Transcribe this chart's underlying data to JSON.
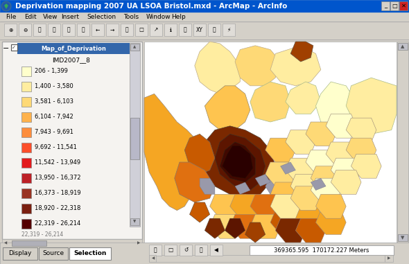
{
  "title_bar": "Deprivation mapping 2007 UA LSOA Bristol.mxd - ArcMap - ArcInfo",
  "title_bar_bg": "#0055cc",
  "title_bar_text_color": "#ffffff",
  "window_bg": "#d4d0c8",
  "menu_items": [
    "File",
    "Edit",
    "View",
    "Insert",
    "Selection",
    "Tools",
    "Window",
    "Help"
  ],
  "legend_title": "Map_of_Deprivation",
  "legend_field": "IMD2007__8",
  "legend_items": [
    {
      "label": "206 - 1,399",
      "color": "#ffffcc"
    },
    {
      "label": "1,400 - 3,580",
      "color": "#ffeda0"
    },
    {
      "label": "3,581 - 6,103",
      "color": "#fed976"
    },
    {
      "label": "6,104 - 7,942",
      "color": "#feb24c"
    },
    {
      "label": "7,943 - 9,691",
      "color": "#fd8d3c"
    },
    {
      "label": "9,692 - 11,541",
      "color": "#fc4e2a"
    },
    {
      "label": "11,542 - 13,949",
      "color": "#e31a1c"
    },
    {
      "label": "13,950 - 16,372",
      "color": "#bd2026"
    },
    {
      "label": "16,373 - 18,919",
      "color": "#993322"
    },
    {
      "label": "18,920 - 22,318",
      "color": "#7a1f10"
    },
    {
      "label": "22,319 - 26,214",
      "color": "#550000"
    }
  ],
  "map_bg": "#ffffff",
  "status_bar_text": "369365.595  170172.227 Meters",
  "tab_labels": [
    "Display",
    "Source",
    "Selection"
  ],
  "panel_bg": "#ffffff",
  "legend_header_bg": "#3366aa",
  "gray_color": "#9999aa",
  "map_colors": {
    "light_yellow": "#ffffcc",
    "light_orange": "#ffeda0",
    "pale_orange": "#fed976",
    "orange": "#feb24c",
    "mid_orange": "#fd8d3c",
    "dark_orange": "#cc6600",
    "brown_orange": "#c87020",
    "medium_brown": "#aa4400",
    "dark_brown": "#883300",
    "very_dark": "#661100",
    "darkest": "#440000",
    "nw_large": "#f0a030",
    "gray": "#9999aa"
  }
}
